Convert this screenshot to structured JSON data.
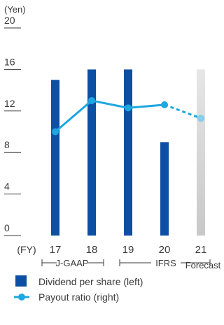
{
  "chart_data": {
    "type": "bar",
    "unit_label": "(Yen)",
    "fy_label": "(FY)",
    "categories": [
      "17",
      "18",
      "19",
      "20",
      "21"
    ],
    "category_notes": [
      "",
      "",
      "",
      "",
      "Forecast"
    ],
    "y_ticks": [
      0,
      4,
      8,
      12,
      16,
      20
    ],
    "ylim": [
      0,
      20
    ],
    "series": [
      {
        "name": "Dividend per share (left)",
        "kind": "bar",
        "color": "#0d4fa3",
        "values": [
          15,
          16,
          16,
          9,
          16
        ],
        "forecast": [
          false,
          false,
          false,
          false,
          true
        ],
        "forecast_color": "#d9d9d9"
      },
      {
        "name": "Payout ratio (right)",
        "kind": "line",
        "color": "#1ea7e1",
        "values": [
          10,
          13,
          12.3,
          12.6,
          11.3
        ],
        "forecast": [
          false,
          false,
          false,
          false,
          true
        ],
        "note": "right axis scale not printed; values shown relative to left-axis gridlines"
      }
    ],
    "standards": [
      {
        "label": "J-GAAP",
        "from": "17",
        "to": "18"
      },
      {
        "label": "IFRS",
        "from": "19",
        "to": "21"
      }
    ],
    "legend_position": "bottom-left"
  },
  "legend": {
    "bar_label": "Dividend per share (left)",
    "line_label": "Payout ratio (right)"
  }
}
